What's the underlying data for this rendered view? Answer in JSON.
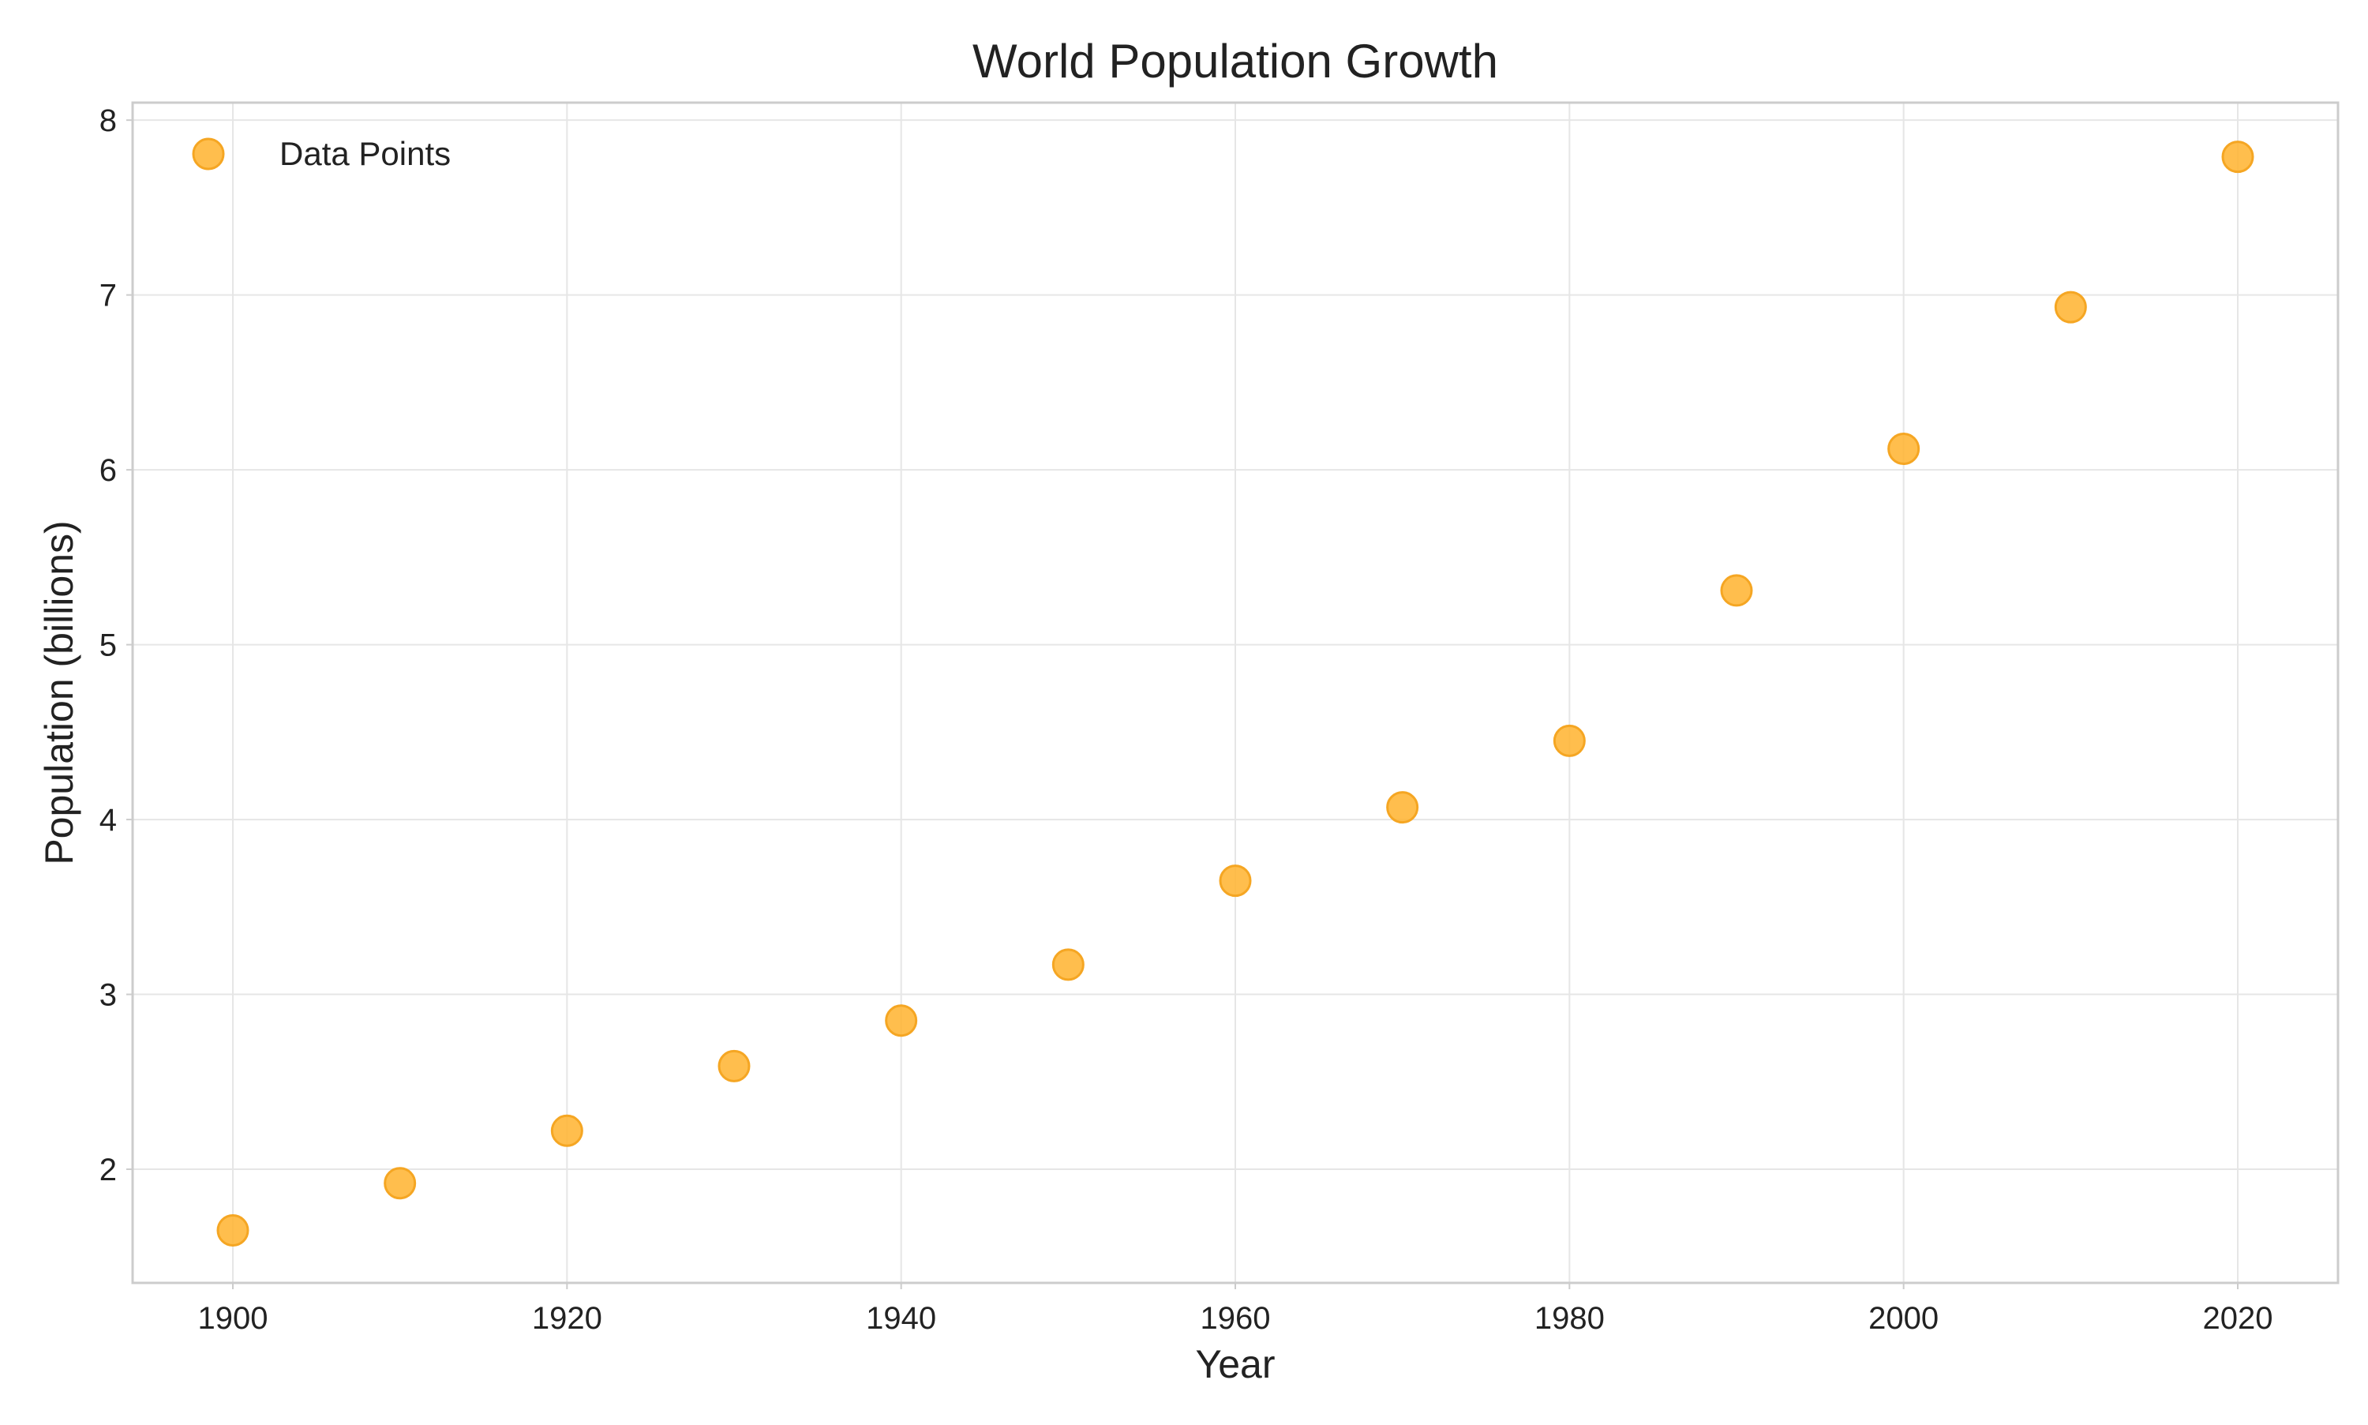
{
  "chart_data": {
    "type": "scatter",
    "title": "World Population Growth",
    "xlabel": "Year",
    "ylabel": "Population (billions)",
    "xlim": [
      1894,
      2026
    ],
    "ylim": [
      1.35,
      8.1
    ],
    "xticks": [
      1900,
      1920,
      1940,
      1960,
      1980,
      2000,
      2020
    ],
    "yticks": [
      2,
      3,
      4,
      5,
      6,
      7,
      8
    ],
    "grid": true,
    "legend_position": "top-left",
    "series": [
      {
        "name": "Data Points",
        "color": "#FFB32E",
        "edge_color": "#F5A623",
        "x": [
          1900,
          1910,
          1920,
          1930,
          1940,
          1950,
          1960,
          1970,
          1980,
          1990,
          2000,
          2010,
          2020
        ],
        "y": [
          1.65,
          1.92,
          2.22,
          2.59,
          2.85,
          3.17,
          3.65,
          4.07,
          4.45,
          5.31,
          6.12,
          6.93,
          7.79
        ]
      }
    ]
  }
}
